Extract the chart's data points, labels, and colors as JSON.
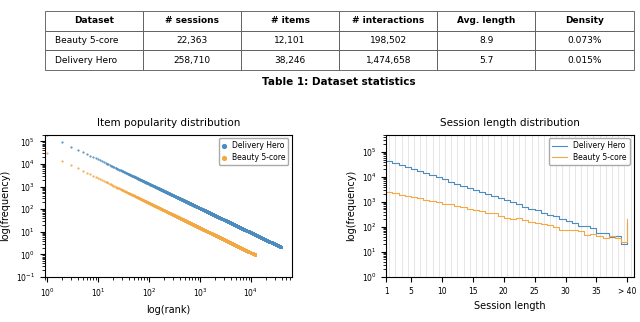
{
  "table": {
    "headers": [
      "Dataset",
      "# sessions",
      "# items",
      "# interactions",
      "Avg. length",
      "Density"
    ],
    "rows": [
      [
        "Beauty 5-core",
        "22,363",
        "12,101",
        "198,502",
        "8.9",
        "0.073%"
      ],
      [
        "Delivery Hero",
        "258,710",
        "38,246",
        "1,474,658",
        "5.7",
        "0.015%"
      ]
    ],
    "caption": "Table 1: Dataset statistics"
  },
  "left_plot": {
    "title": "Item popularity distribution",
    "xlabel": "log(rank)",
    "ylabel": "log(frequency)",
    "delivery_hero": {
      "n_items": 38246,
      "n_interactions": 1474658,
      "color": "#4c8cbf",
      "label": "Delivery Hero"
    },
    "beauty": {
      "n_items": 12101,
      "n_interactions": 198502,
      "color": "#f5a742",
      "label": "Beauty 5-core"
    }
  },
  "right_plot": {
    "title": "Session length distribution",
    "xlabel": "Session length",
    "ylabel": "log(frequency)",
    "delivery_hero_color": "#4c8cbf",
    "beauty_color": "#f5a742",
    "delivery_hero_label": "Delivery Hero",
    "beauty_label": "Beauty 5-core"
  }
}
